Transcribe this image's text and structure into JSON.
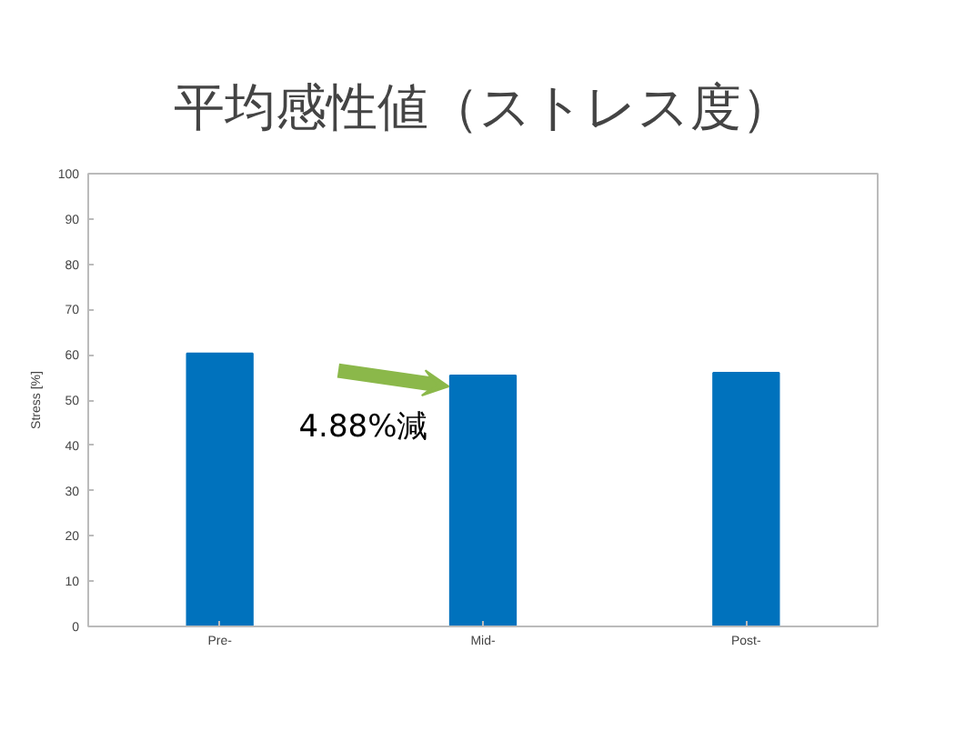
{
  "chart_data": {
    "type": "bar",
    "title": "平均感性値（ストレス度）",
    "ylabel": "Stress [%]",
    "categories": [
      "Pre-",
      "Mid-",
      "Post-"
    ],
    "values": [
      60.3,
      55.4,
      56.0
    ],
    "color": "#0072bd",
    "ylim": [
      0,
      100
    ],
    "yticks": [
      0,
      10,
      20,
      30,
      40,
      50,
      60,
      70,
      80,
      90,
      100
    ],
    "grid": false,
    "annotations": [
      "4.88%減"
    ]
  }
}
